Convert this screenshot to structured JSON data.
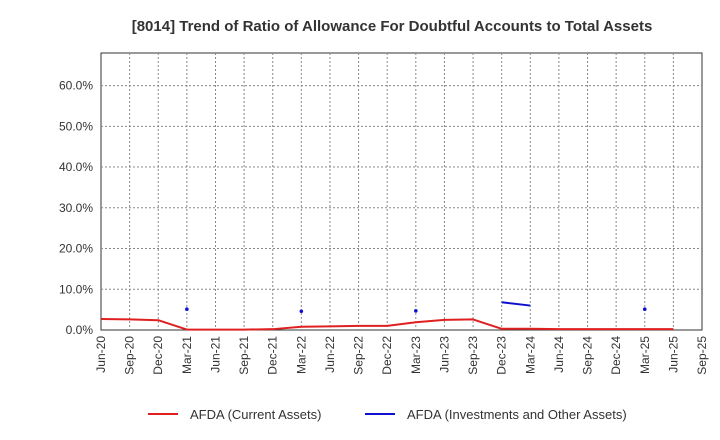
{
  "chart_data": {
    "type": "line",
    "title": "[8014]  Trend of Ratio of Allowance For Doubtful Accounts to Total Assets",
    "xlabel": "",
    "ylabel": "",
    "ylim": [
      0,
      0.68
    ],
    "y_ticks": [
      0,
      0.1,
      0.2,
      0.3,
      0.4,
      0.5,
      0.6
    ],
    "y_tick_labels": [
      "0.0%",
      "10.0%",
      "20.0%",
      "30.0%",
      "40.0%",
      "50.0%",
      "60.0%"
    ],
    "x_tick_labels": [
      "Jun-20",
      "Sep-20",
      "Dec-20",
      "Mar-21",
      "Jun-21",
      "Sep-21",
      "Dec-21",
      "Mar-22",
      "Jun-22",
      "Sep-22",
      "Dec-22",
      "Mar-23",
      "Jun-23",
      "Sep-23",
      "Dec-23",
      "Mar-24",
      "Jun-24",
      "Sep-24",
      "Dec-24",
      "Mar-25",
      "Jun-25",
      "Sep-25"
    ],
    "grid": true,
    "legend_position": "bottom",
    "x": [
      "Jun-20",
      "Sep-20",
      "Dec-20",
      "Mar-21",
      "Jun-21",
      "Sep-21",
      "Dec-21",
      "Mar-22",
      "Jun-22",
      "Sep-22",
      "Dec-22",
      "Mar-23",
      "Jun-23",
      "Sep-23",
      "Dec-23",
      "Mar-24",
      "Jun-24",
      "Sep-24",
      "Dec-24",
      "Mar-25",
      "Jun-25",
      "Sep-25"
    ],
    "series": [
      {
        "name": "AFDA (Current Assets)",
        "color": "#e02020",
        "values": [
          0.027,
          0.026,
          0.024,
          0.001,
          0.001,
          0.001,
          0.002,
          0.008,
          0.009,
          0.01,
          0.01,
          0.019,
          0.025,
          0.026,
          0.003,
          0.003,
          0.002,
          0.002,
          0.002,
          0.002,
          0.002,
          null
        ]
      },
      {
        "name": "AFDA (Investments and Other Assets)",
        "color": "#1010d0",
        "values": [
          null,
          null,
          null,
          0.051,
          null,
          null,
          null,
          0.046,
          null,
          null,
          null,
          0.047,
          null,
          null,
          0.068,
          0.06,
          null,
          null,
          null,
          0.051,
          null,
          null
        ]
      }
    ]
  }
}
